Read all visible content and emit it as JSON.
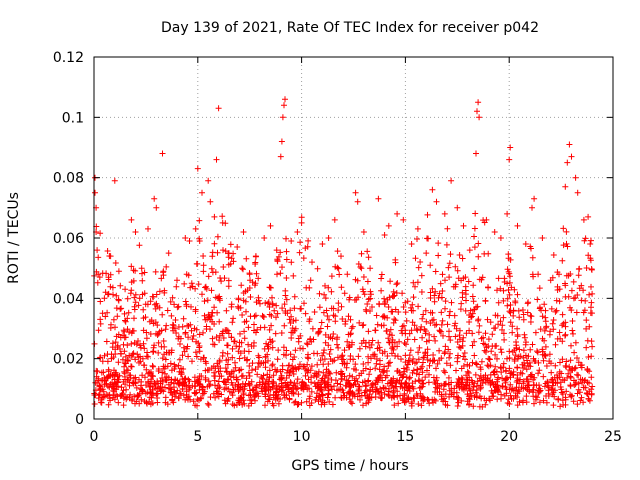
{
  "chart_data": {
    "type": "scatter",
    "title": "Day 139 of 2021, Rate Of TEC Index for receiver p042",
    "xlabel": "GPS time / hours",
    "ylabel": "ROTI / TECUs",
    "xlim": [
      0,
      25
    ],
    "ylim": [
      0,
      0.12
    ],
    "xticks": [
      0,
      5,
      10,
      15,
      20,
      25
    ],
    "xtick_labels": [
      "0",
      "5",
      "10",
      "15",
      "20",
      "25"
    ],
    "yticks": [
      0,
      0.02,
      0.04,
      0.06,
      0.08,
      0.1,
      0.12
    ],
    "ytick_labels": [
      "0",
      "0.02",
      "0.04",
      "0.06",
      "0.08",
      "0.1",
      "0.12"
    ],
    "grid": true,
    "marker": "+",
    "color": "#ff0000",
    "series": [
      {
        "name": "ROTI",
        "points": [
          [
            0.05,
            0.08
          ],
          [
            0.05,
            0.075
          ],
          [
            0.1,
            0.07
          ],
          [
            0.1,
            0.062
          ],
          [
            0.15,
            0.056
          ],
          [
            0.2,
            0.048
          ],
          [
            0.3,
            0.033
          ],
          [
            0.5,
            0.04
          ],
          [
            0.7,
            0.047
          ],
          [
            0.8,
            0.054
          ],
          [
            1.0,
            0.079
          ],
          [
            1.2,
            0.049
          ],
          [
            1.5,
            0.043
          ],
          [
            1.8,
            0.066
          ],
          [
            2.0,
            0.062
          ],
          [
            2.3,
            0.05
          ],
          [
            2.6,
            0.063
          ],
          [
            2.9,
            0.073
          ],
          [
            3.0,
            0.07
          ],
          [
            3.3,
            0.088
          ],
          [
            3.6,
            0.055
          ],
          [
            4.0,
            0.046
          ],
          [
            4.4,
            0.06
          ],
          [
            4.6,
            0.059
          ],
          [
            4.9,
            0.063
          ],
          [
            5.0,
            0.083
          ],
          [
            5.2,
            0.075
          ],
          [
            5.5,
            0.079
          ],
          [
            5.6,
            0.072
          ],
          [
            5.8,
            0.067
          ],
          [
            5.9,
            0.086
          ],
          [
            6.0,
            0.103
          ],
          [
            6.2,
            0.065
          ],
          [
            6.5,
            0.055
          ],
          [
            6.9,
            0.057
          ],
          [
            7.2,
            0.062
          ],
          [
            7.5,
            0.048
          ],
          [
            7.8,
            0.054
          ],
          [
            8.2,
            0.06
          ],
          [
            8.5,
            0.064
          ],
          [
            8.8,
            0.056
          ],
          [
            9.0,
            0.087
          ],
          [
            9.05,
            0.092
          ],
          [
            9.1,
            0.1
          ],
          [
            9.15,
            0.104
          ],
          [
            9.2,
            0.106
          ],
          [
            9.5,
            0.059
          ],
          [
            9.8,
            0.062
          ],
          [
            10.0,
            0.065
          ],
          [
            10.5,
            0.052
          ],
          [
            11.0,
            0.058
          ],
          [
            11.3,
            0.06
          ],
          [
            11.6,
            0.066
          ],
          [
            11.9,
            0.054
          ],
          [
            12.2,
            0.048
          ],
          [
            12.6,
            0.075
          ],
          [
            12.7,
            0.072
          ],
          [
            13.0,
            0.062
          ],
          [
            13.3,
            0.05
          ],
          [
            13.7,
            0.073
          ],
          [
            14.0,
            0.061
          ],
          [
            14.2,
            0.064
          ],
          [
            14.6,
            0.068
          ],
          [
            14.9,
            0.066
          ],
          [
            15.3,
            0.058
          ],
          [
            15.6,
            0.063
          ],
          [
            16.0,
            0.055
          ],
          [
            16.3,
            0.076
          ],
          [
            16.5,
            0.072
          ],
          [
            16.9,
            0.068
          ],
          [
            17.2,
            0.079
          ],
          [
            17.5,
            0.07
          ],
          [
            17.8,
            0.064
          ],
          [
            18.1,
            0.056
          ],
          [
            18.4,
            0.088
          ],
          [
            18.45,
            0.102
          ],
          [
            18.5,
            0.105
          ],
          [
            18.55,
            0.1
          ],
          [
            18.9,
            0.066
          ],
          [
            19.3,
            0.062
          ],
          [
            19.6,
            0.06
          ],
          [
            19.9,
            0.068
          ],
          [
            20.0,
            0.086
          ],
          [
            20.05,
            0.09
          ],
          [
            20.4,
            0.064
          ],
          [
            20.8,
            0.058
          ],
          [
            21.1,
            0.07
          ],
          [
            21.2,
            0.073
          ],
          [
            21.6,
            0.06
          ],
          [
            22.0,
            0.046
          ],
          [
            22.4,
            0.048
          ],
          [
            22.7,
            0.077
          ],
          [
            22.8,
            0.085
          ],
          [
            22.9,
            0.091
          ],
          [
            23.0,
            0.087
          ],
          [
            23.2,
            0.08
          ],
          [
            23.3,
            0.075
          ],
          [
            23.6,
            0.066
          ],
          [
            23.8,
            0.067
          ],
          [
            23.9,
            0.058
          ]
        ]
      }
    ]
  }
}
